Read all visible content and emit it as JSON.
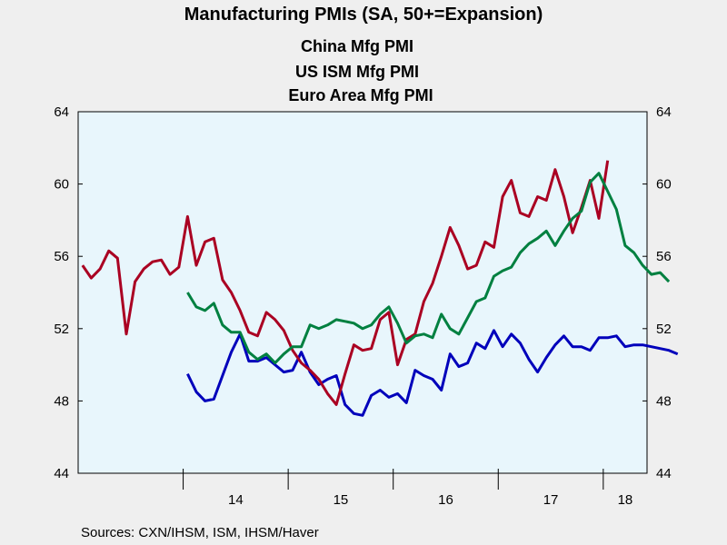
{
  "chart_data": {
    "type": "line",
    "title": "Manufacturing PMIs (SA, 50+=Expansion)",
    "source": "Sources:  CXN/IHSM, ISM, IHSM/Haver",
    "x_tick_labels": [
      "14",
      "15",
      "16",
      "17",
      "18"
    ],
    "y_ticks": [
      44,
      48,
      52,
      56,
      60,
      64
    ],
    "ylim": [
      44,
      64
    ],
    "x_range": [
      "2013-01",
      "2018-05"
    ],
    "grid": false,
    "legend_placement": "top-center",
    "y_axis_both_sides": true,
    "series": [
      {
        "name": "China Mfg PMI",
        "color": "#0000bb",
        "start": "2014-01",
        "values": [
          49.5,
          48.5,
          48.0,
          48.1,
          49.4,
          50.7,
          51.7,
          50.2,
          50.2,
          50.4,
          50.0,
          49.6,
          49.7,
          50.7,
          49.6,
          48.9,
          49.2,
          49.4,
          47.8,
          47.3,
          47.2,
          48.3,
          48.6,
          48.2,
          48.4,
          47.9,
          49.7,
          49.4,
          49.2,
          48.6,
          50.6,
          49.9,
          50.1,
          51.2,
          50.9,
          51.9,
          51.0,
          51.7,
          51.2,
          50.3,
          49.6,
          50.4,
          51.1,
          51.6,
          51.0,
          51.0,
          50.8,
          51.5,
          51.5,
          51.6,
          51.0,
          51.1,
          51.1,
          51.0,
          50.9,
          50.8,
          50.6
        ]
      },
      {
        "name": "US ISM Mfg PMI",
        "color": "#aa0022",
        "start": "2013-01",
        "values": [
          55.5,
          54.8,
          55.3,
          56.3,
          55.9,
          51.7,
          54.6,
          55.3,
          55.7,
          55.8,
          55.0,
          55.4,
          58.2,
          55.5,
          56.8,
          57.0,
          54.7,
          54.0,
          53.0,
          51.8,
          51.6,
          52.9,
          52.5,
          51.9,
          50.8,
          50.1,
          49.7,
          49.2,
          48.4,
          47.8,
          49.5,
          51.1,
          50.8,
          50.9,
          52.5,
          52.9,
          50.0,
          51.4,
          51.7,
          53.5,
          54.5,
          56.0,
          57.6,
          56.6,
          55.3,
          55.5,
          56.8,
          56.5,
          59.3,
          60.2,
          58.4,
          58.2,
          59.3,
          59.1,
          60.8,
          59.3,
          57.3,
          58.7,
          60.2,
          58.1,
          61.3
        ]
      },
      {
        "name": "Euro Area Mfg PMI",
        "color": "#008040",
        "start": "2014-01",
        "values": [
          54.0,
          53.2,
          53.0,
          53.4,
          52.2,
          51.8,
          51.8,
          50.7,
          50.3,
          50.6,
          50.1,
          50.6,
          51.0,
          51.0,
          52.2,
          52.0,
          52.2,
          52.5,
          52.4,
          52.3,
          52.0,
          52.2,
          52.8,
          53.2,
          52.3,
          51.2,
          51.6,
          51.7,
          51.5,
          52.8,
          52.0,
          51.7,
          52.6,
          53.5,
          53.7,
          54.9,
          55.2,
          55.4,
          56.2,
          56.7,
          57.0,
          57.4,
          56.6,
          57.4,
          58.1,
          58.5,
          60.1,
          60.6,
          59.6,
          58.6,
          56.6,
          56.2,
          55.5,
          55.0,
          55.1,
          54.6
        ]
      }
    ]
  }
}
